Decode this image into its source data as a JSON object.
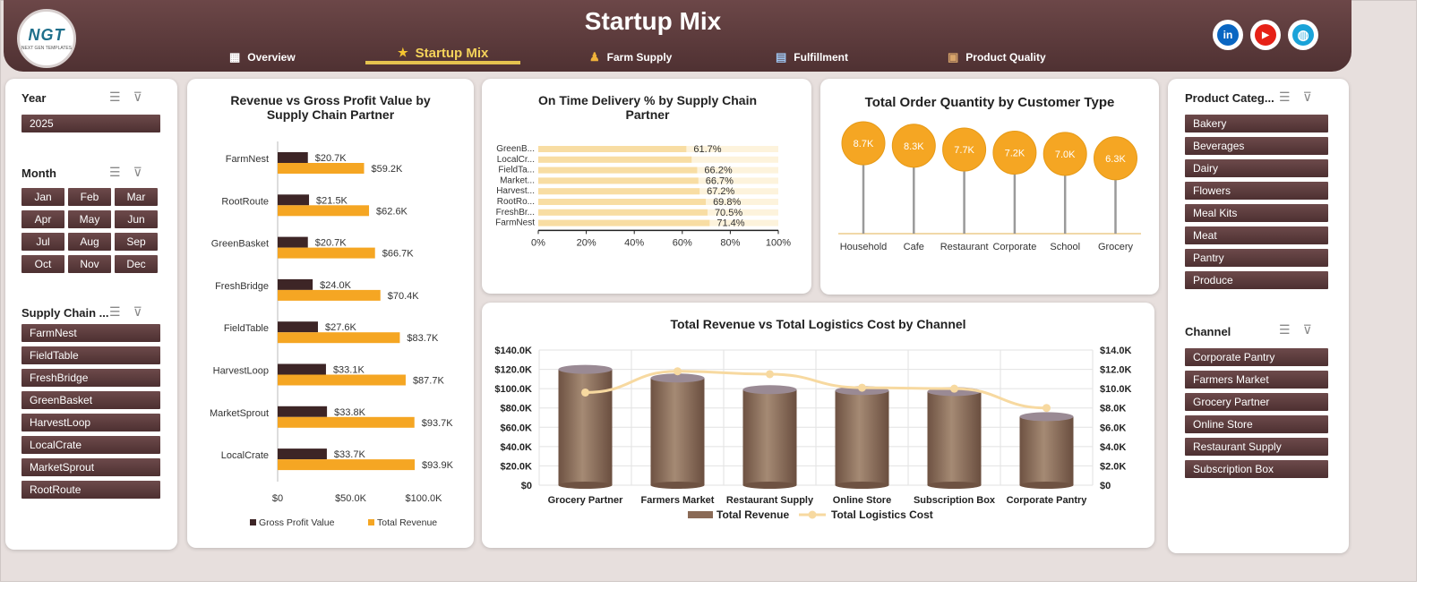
{
  "header": {
    "logo_text": "NGT",
    "logo_sub": "NEXT GEN TEMPLATES",
    "title": "Startup Mix",
    "tabs": [
      {
        "label": "Overview",
        "icon": "overview-icon",
        "active": false
      },
      {
        "label": "Startup Mix",
        "icon": "star-icon",
        "active": true
      },
      {
        "label": "Farm Supply",
        "icon": "farmer-icon",
        "active": false
      },
      {
        "label": "Fulfillment",
        "icon": "chart-icon",
        "active": false
      },
      {
        "label": "Product Quality",
        "icon": "box-icon",
        "active": false
      }
    ],
    "social": [
      {
        "name": "linkedin-icon",
        "glyph": "in",
        "color": "#0a66c2"
      },
      {
        "name": "youtube-icon",
        "glyph": "▶",
        "color": "#e62117"
      },
      {
        "name": "web-icon",
        "glyph": "◍",
        "color": "#1aa3d9"
      }
    ]
  },
  "slicers": {
    "year": {
      "title": "Year",
      "items": [
        "2025"
      ]
    },
    "month": {
      "title": "Month",
      "items": [
        "Jan",
        "Feb",
        "Mar",
        "Apr",
        "May",
        "Jun",
        "Jul",
        "Aug",
        "Sep",
        "Oct",
        "Nov",
        "Dec"
      ]
    },
    "partner": {
      "title": "Supply Chain ...",
      "items": [
        "FarmNest",
        "FieldTable",
        "FreshBridge",
        "GreenBasket",
        "HarvestLoop",
        "LocalCrate",
        "MarketSprout",
        "RootRoute"
      ]
    },
    "category": {
      "title": "Product Categ...",
      "items": [
        "Bakery",
        "Beverages",
        "Dairy",
        "Flowers",
        "Meal Kits",
        "Meat",
        "Pantry",
        "Produce"
      ]
    },
    "channel": {
      "title": "Channel",
      "items": [
        "Corporate Pantry",
        "Farmers Market",
        "Grocery Partner",
        "Online Store",
        "Restaurant Supply",
        "Subscription Box"
      ]
    }
  },
  "chart_data": [
    {
      "type": "bar",
      "orientation": "horizontal",
      "title": "Revenue vs Gross Profit Value by Supply Chain Partner",
      "categories": [
        "FarmNest",
        "RootRoute",
        "GreenBasket",
        "FreshBridge",
        "FieldTable",
        "HarvestLoop",
        "MarketSprout",
        "LocalCrate"
      ],
      "series": [
        {
          "name": "Gross Profit Value",
          "color": "#3d2526",
          "values": [
            20.7,
            21.5,
            20.7,
            24.0,
            27.6,
            33.1,
            33.8,
            33.7
          ],
          "labels": [
            "$20.7K",
            "$21.5K",
            "$20.7K",
            "$24.0K",
            "$27.6K",
            "$33.1K",
            "$33.8K",
            "$33.7K"
          ]
        },
        {
          "name": "Total Revenue",
          "color": "#f5a623",
          "values": [
            59.2,
            62.6,
            66.7,
            70.4,
            83.7,
            87.7,
            93.7,
            93.9
          ],
          "labels": [
            "$59.2K",
            "$62.6K",
            "$66.7K",
            "$70.4K",
            "$83.7K",
            "$87.7K",
            "$93.7K",
            "$93.9K"
          ]
        }
      ],
      "xlim": [
        0,
        100
      ],
      "xticks": [
        "$0",
        "$50.0K",
        "$100.0K"
      ],
      "legend": "bottom"
    },
    {
      "type": "bar",
      "orientation": "horizontal",
      "title": "On Time Delivery % by Supply Chain Partner",
      "categories": [
        "GreenB...",
        "LocalCr...",
        "FieldTa...",
        "Market...",
        "Harvest...",
        "RootRo...",
        "FreshBr...",
        "FarmNest"
      ],
      "values": [
        61.7,
        63.9,
        66.2,
        66.7,
        67.2,
        69.8,
        70.5,
        71.4
      ],
      "labels": [
        "61.7%",
        "",
        "66.2%",
        "66.7%",
        "67.2%",
        "69.8%",
        "70.5%",
        "71.4%"
      ],
      "xlim": [
        0,
        100
      ],
      "xticks": [
        "0%",
        "20%",
        "40%",
        "60%",
        "80%",
        "100%"
      ],
      "color": "#f8dda3",
      "track_color": "#fdf3dc"
    },
    {
      "type": "lollipop",
      "title": "Total Order Quantity by Customer Type",
      "categories": [
        "Household",
        "Cafe",
        "Restaurant",
        "Corporate",
        "School",
        "Grocery"
      ],
      "values": [
        8.7,
        8.3,
        7.7,
        7.2,
        7.0,
        6.3
      ],
      "labels": [
        "8.7K",
        "8.3K",
        "7.7K",
        "7.2K",
        "7.0K",
        "6.3K"
      ],
      "color": "#f5a623"
    },
    {
      "type": "bar",
      "title": "Total Revenue vs Total Logistics Cost by Channel",
      "categories": [
        "Grocery Partner",
        "Farmers Market",
        "Restaurant Supply",
        "Online Store",
        "Subscription Box",
        "Corporate Pantry"
      ],
      "series": [
        {
          "name": "Total Revenue",
          "type": "bar",
          "axis": "left",
          "color": "#8a6a56",
          "values": [
            120,
            111,
            99,
            98,
            97,
            71
          ]
        },
        {
          "name": "Total Logistics Cost",
          "type": "line",
          "axis": "right",
          "color": "#f7d9a0",
          "values": [
            9.6,
            11.8,
            11.5,
            10.1,
            10.0,
            8.0
          ]
        }
      ],
      "ylim_left": [
        0,
        140
      ],
      "yticks_left": [
        "$0",
        "$20.0K",
        "$40.0K",
        "$60.0K",
        "$80.0K",
        "$100.0K",
        "$120.0K",
        "$140.0K"
      ],
      "ylim_right": [
        0,
        14
      ],
      "yticks_right": [
        "$0",
        "$2.0K",
        "$4.0K",
        "$6.0K",
        "$8.0K",
        "$10.0K",
        "$12.0K",
        "$14.0K"
      ],
      "grid": true,
      "legend": "bottom"
    }
  ]
}
